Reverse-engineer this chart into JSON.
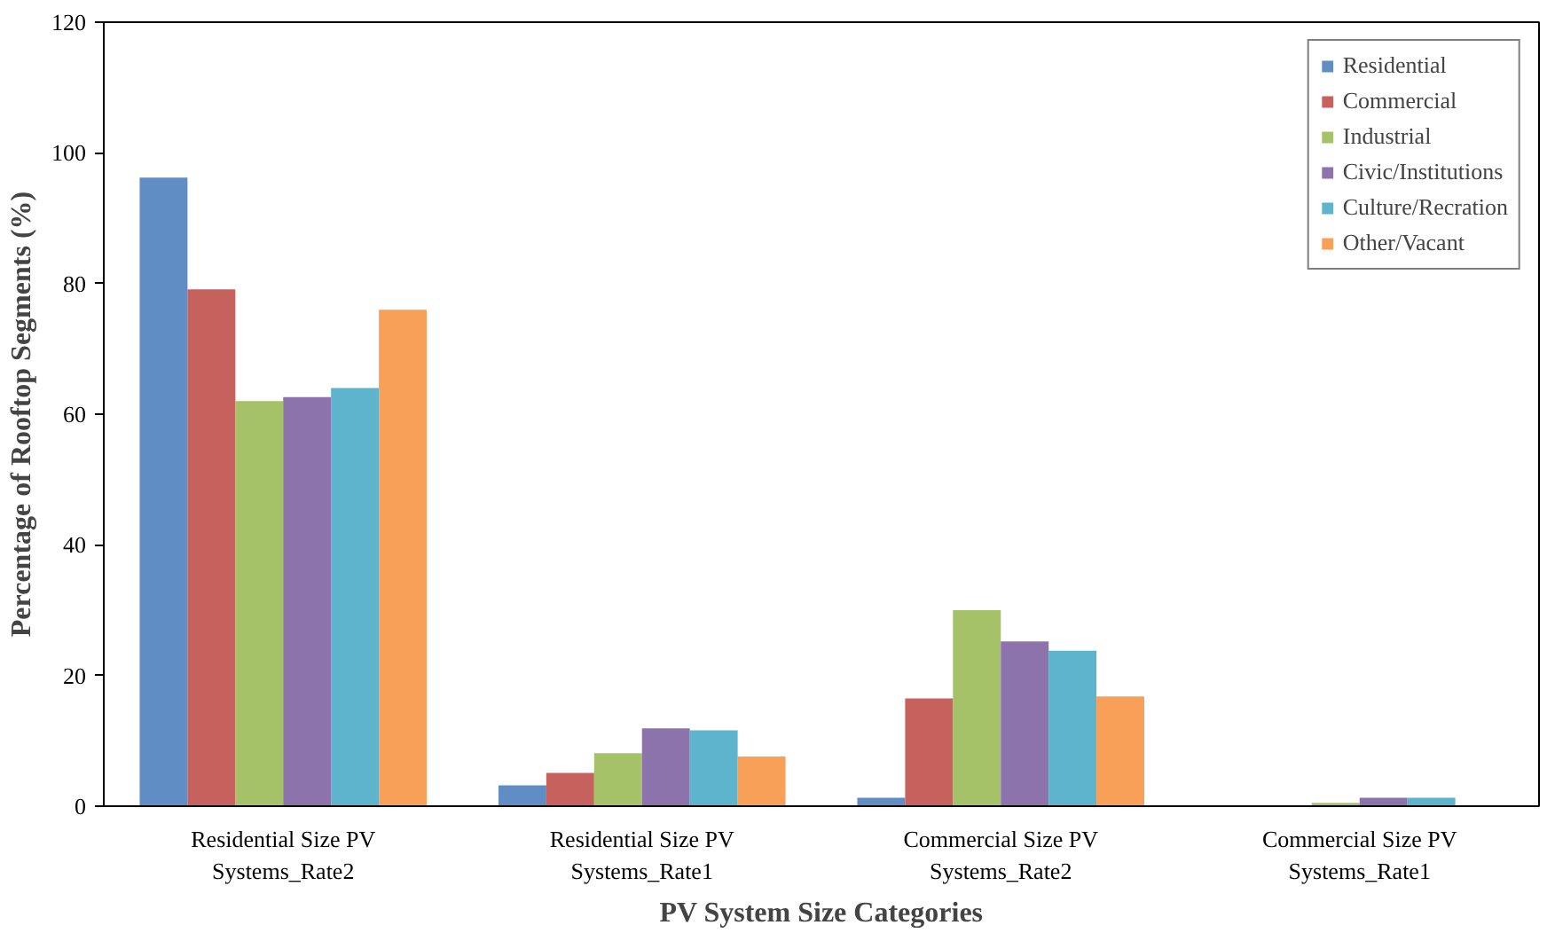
{
  "chart_data": {
    "type": "bar",
    "xlabel": "PV System Size Categories",
    "ylabel": "Percentage of Rooftop Segments (%)",
    "categories": [
      "Residential Size PV Systems_Rate2",
      "Residential Size PV Systems_Rate1",
      "Commercial Size PV Systems_Rate2",
      "Commercial Size PV Systems_Rate1"
    ],
    "series": [
      {
        "name": "Residential",
        "color": "#4f81bd",
        "values": [
          96.2,
          3.2,
          1.3,
          null
        ]
      },
      {
        "name": "Commercial",
        "color": "#c0504d",
        "values": [
          79.1,
          5.1,
          16.5,
          null
        ]
      },
      {
        "name": "Industrial",
        "color": "#9bbb59",
        "values": [
          62,
          8.1,
          30,
          0.5
        ]
      },
      {
        "name": "Civic/Institutions",
        "color": "#8064a2",
        "values": [
          62.6,
          11.9,
          25.2,
          1.3
        ]
      },
      {
        "name": "Culture/Recration",
        "color": "#4bacc6",
        "values": [
          64,
          11.6,
          23.8,
          1.3
        ]
      },
      {
        "name": "Other/Vacant",
        "color": "#f79646",
        "values": [
          76,
          7.6,
          16.8,
          null
        ]
      }
    ],
    "ylim": [
      0,
      120
    ],
    "yticks": [
      0,
      20,
      40,
      60,
      80,
      100,
      120
    ],
    "grid": false,
    "legend": "top right"
  }
}
